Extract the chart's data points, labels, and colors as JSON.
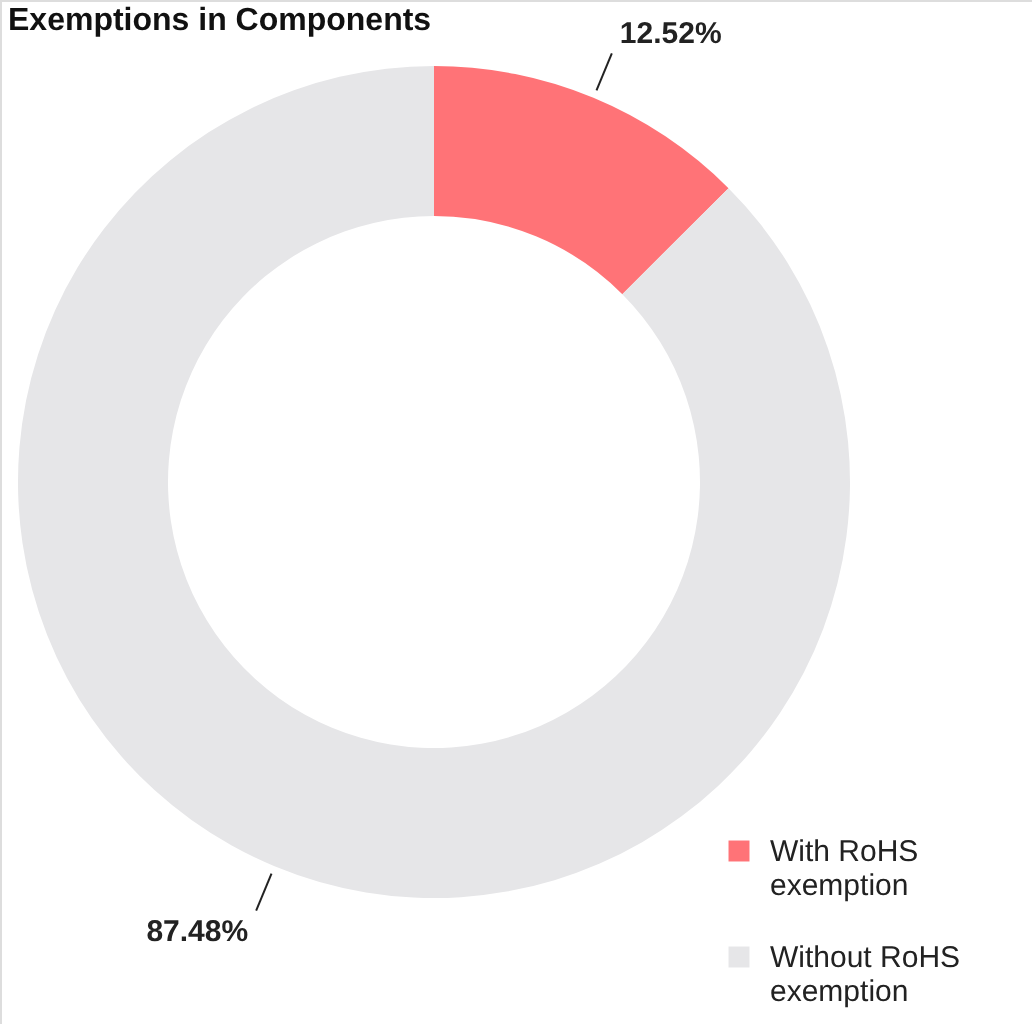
{
  "chart_data": {
    "type": "donut",
    "title": "Exemptions in Components",
    "categories": [
      "With RoHS exemption",
      "Without RoHS exemption"
    ],
    "values": [
      12.52,
      87.48
    ],
    "colors": [
      "#ff7377",
      "#e6e6e8"
    ],
    "value_labels": [
      "12.52%",
      "87.48%"
    ],
    "legend": "bottom right"
  }
}
